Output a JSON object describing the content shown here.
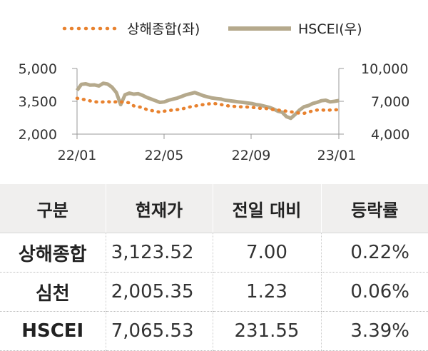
{
  "chart_data": {
    "type": "line",
    "legend": [
      {
        "name": "상해종합(좌)",
        "color": "#e8822f",
        "style": "dotted"
      },
      {
        "name": "HSCEI(우)",
        "color": "#b5a98c",
        "style": "solid"
      }
    ],
    "x_labels": [
      "22/01",
      "22/05",
      "22/09",
      "23/01"
    ],
    "y_left": {
      "ticks": [
        "2,000",
        "3,500",
        "5,000"
      ],
      "range": [
        2000,
        5000
      ]
    },
    "y_right": {
      "ticks": [
        "4,000",
        "7,000",
        "10,000"
      ],
      "range": [
        4000,
        10000
      ]
    },
    "series": [
      {
        "name": "상해종합(좌)",
        "axis": "left",
        "values": [
          3640,
          3600,
          3570,
          3520,
          3480,
          3460,
          3470,
          3490,
          3450,
          3480,
          3470,
          3460,
          3430,
          3290,
          3250,
          3220,
          3120,
          3080,
          3050,
          3000,
          3050,
          3080,
          3100,
          3120,
          3150,
          3200,
          3250,
          3280,
          3320,
          3350,
          3380,
          3400,
          3390,
          3350,
          3310,
          3280,
          3270,
          3250,
          3250,
          3240,
          3230,
          3200,
          3180,
          3180,
          3150,
          3120,
          3100,
          3080,
          3050,
          3020,
          2990,
          2960,
          2950,
          3010,
          3060,
          3100,
          3110,
          3090,
          3100,
          3110,
          3120
        ]
      },
      {
        "name": "HSCEI(우)",
        "axis": "right",
        "values": [
          8000,
          8550,
          8600,
          8480,
          8500,
          8400,
          8650,
          8580,
          8300,
          7800,
          6700,
          7600,
          7750,
          7650,
          7700,
          7550,
          7350,
          7200,
          7050,
          6900,
          6950,
          7100,
          7200,
          7300,
          7450,
          7600,
          7700,
          7800,
          7650,
          7500,
          7400,
          7300,
          7250,
          7200,
          7100,
          7050,
          7000,
          6950,
          6900,
          6850,
          6800,
          6700,
          6650,
          6550,
          6450,
          6300,
          6100,
          6000,
          5600,
          5450,
          5800,
          6200,
          6500,
          6600,
          6800,
          6900,
          7050,
          7100,
          6950,
          7000,
          7066
        ]
      }
    ]
  },
  "table": {
    "headers": [
      "구분",
      "현재가",
      "전일 대비",
      "등락률"
    ],
    "rows": [
      {
        "name": "상해종합",
        "price": "3,123.52",
        "change": "7.00",
        "rate": "0.22%"
      },
      {
        "name": "심천",
        "price": "2,005.35",
        "change": "1.23",
        "rate": "0.06%"
      },
      {
        "name": "HSCEI",
        "price": "7,065.53",
        "change": "231.55",
        "rate": "3.39%"
      }
    ]
  }
}
